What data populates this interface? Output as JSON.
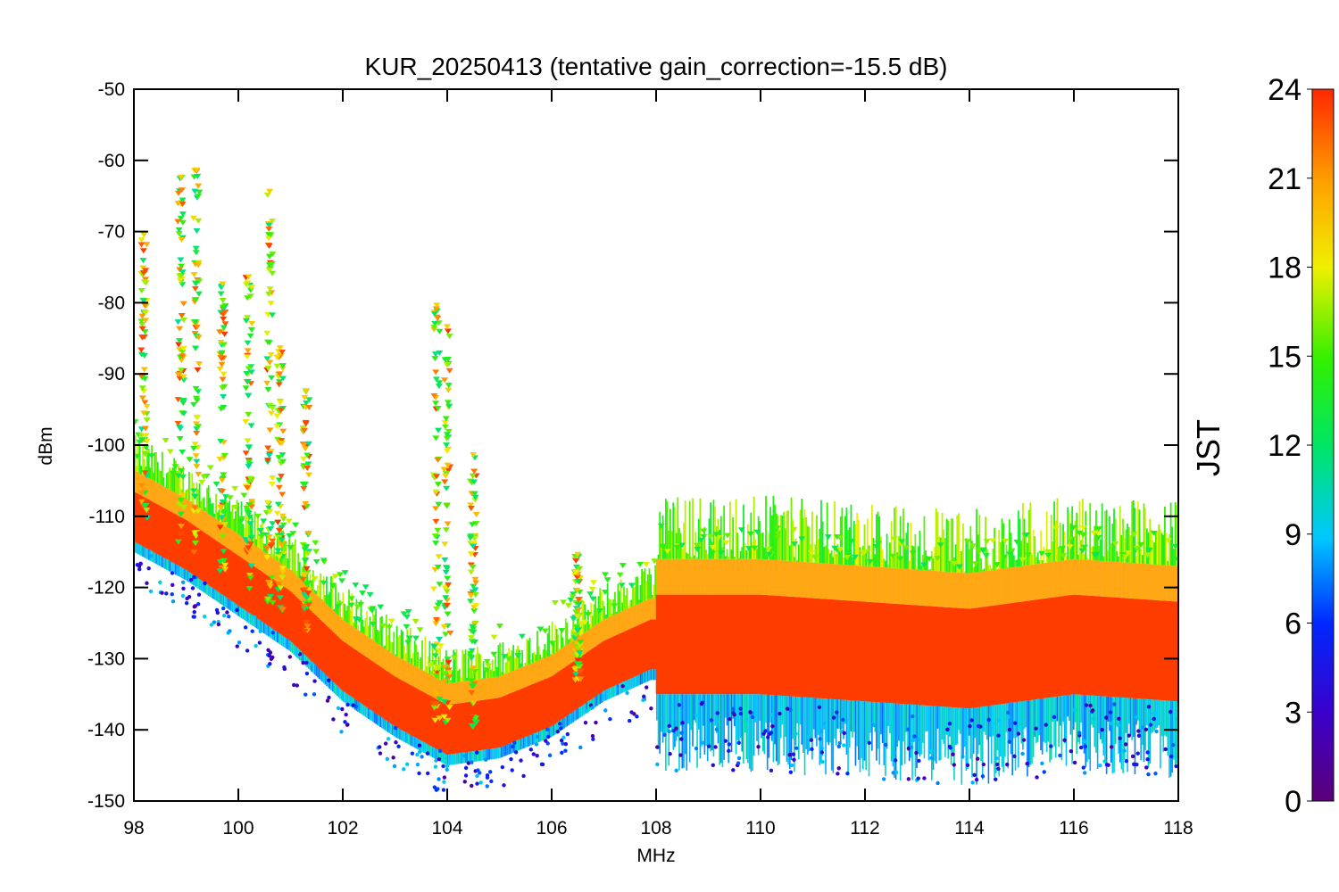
{
  "chart_data": {
    "type": "scatter",
    "title": "KUR_20250413 (tentative gain_correction=-15.5 dB)",
    "xlabel": "MHz",
    "ylabel": "dBm",
    "xlim": [
      98,
      118
    ],
    "ylim": [
      -150,
      -50
    ],
    "xticks": [
      98,
      100,
      102,
      104,
      106,
      108,
      110,
      112,
      114,
      116,
      118
    ],
    "yticks": [
      -50,
      -60,
      -70,
      -80,
      -90,
      -100,
      -110,
      -120,
      -130,
      -140,
      -150
    ],
    "colorbar": {
      "label": "JST",
      "range": [
        0,
        24
      ],
      "ticks": [
        0,
        3,
        6,
        9,
        12,
        15,
        18,
        21,
        24
      ],
      "colormap": "rainbow"
    },
    "grid": false,
    "noise_floor": {
      "x": [
        98,
        99,
        100,
        101,
        102,
        103,
        104,
        105,
        106,
        107,
        107.9,
        108,
        110,
        112,
        114,
        116,
        118
      ],
      "y": [
        -110,
        -114,
        -119,
        -124,
        -131,
        -136,
        -140,
        -139,
        -136,
        -131,
        -128,
        -128,
        -128,
        -129,
        -130,
        -128,
        -129
      ]
    },
    "stations": [
      {
        "freq": 98.2,
        "peak": -70
      },
      {
        "freq": 98.9,
        "peak": -62
      },
      {
        "freq": 99.2,
        "peak": -61
      },
      {
        "freq": 99.7,
        "peak": -77
      },
      {
        "freq": 100.2,
        "peak": -76
      },
      {
        "freq": 100.6,
        "peak": -64
      },
      {
        "freq": 100.8,
        "peak": -86
      },
      {
        "freq": 101.3,
        "peak": -92
      },
      {
        "freq": 103.8,
        "peak": -80
      },
      {
        "freq": 104.0,
        "peak": -83
      },
      {
        "freq": 104.5,
        "peak": -101
      },
      {
        "freq": 106.5,
        "peak": -115
      }
    ]
  }
}
